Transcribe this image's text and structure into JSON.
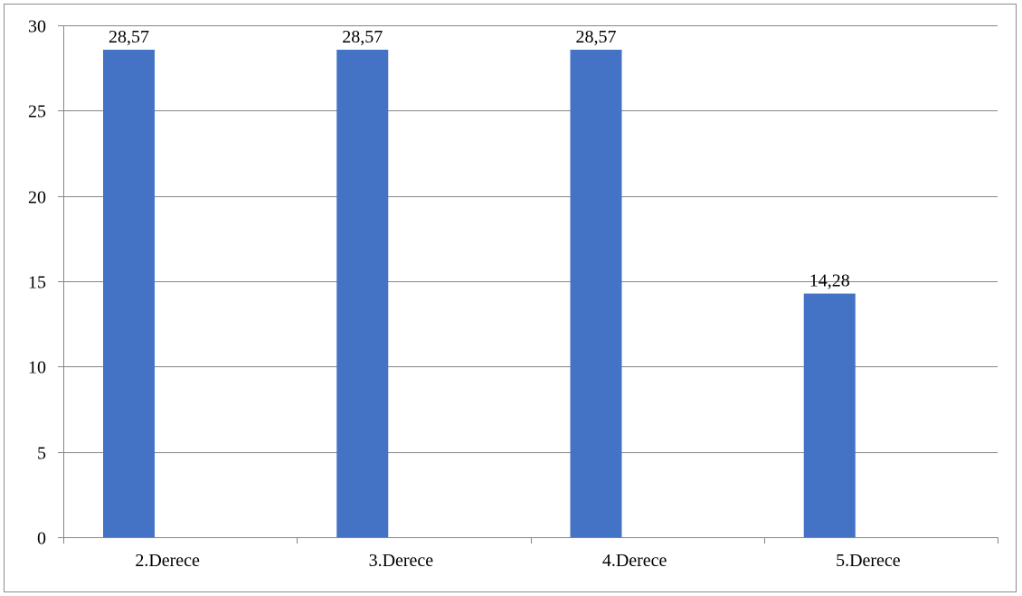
{
  "chart_data": {
    "type": "bar",
    "title": "",
    "xlabel": "",
    "ylabel": "",
    "categories": [
      "2.Derece",
      "3.Derece",
      "4.Derece",
      "5.Derece"
    ],
    "values": [
      28.57,
      28.57,
      28.57,
      14.28
    ],
    "value_labels": [
      "28,57",
      "28,57",
      "28,57",
      "14,28"
    ],
    "ylim": [
      0,
      30
    ],
    "yticks": [
      0,
      5,
      10,
      15,
      20,
      25,
      30
    ],
    "grid": true,
    "legend": "none",
    "bar_color": "#4472c4",
    "grid_color": "#868686"
  }
}
